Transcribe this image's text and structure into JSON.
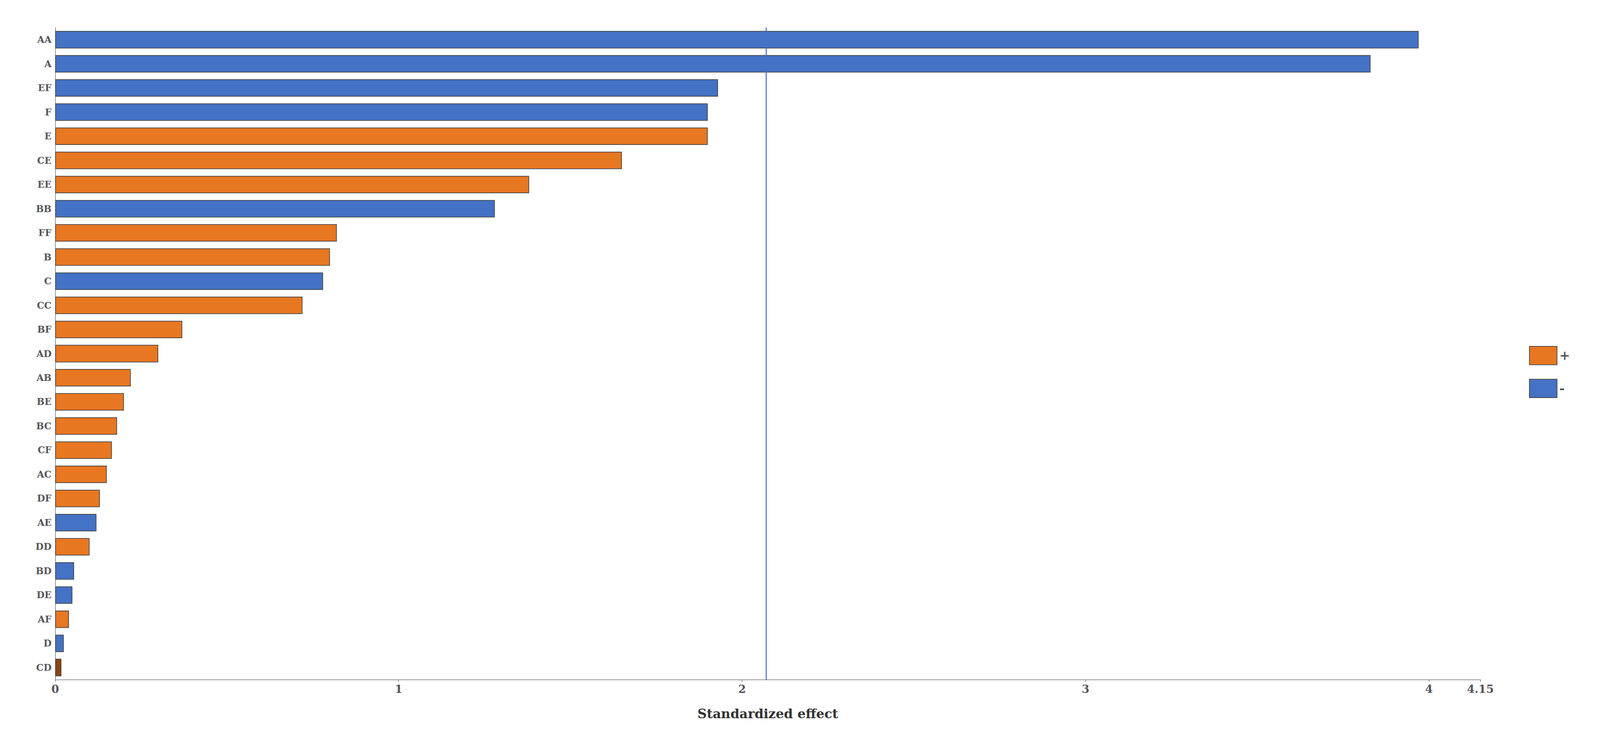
{
  "chart_data": {
    "type": "bar",
    "orientation": "horizontal",
    "xlabel": "Standardized effect",
    "categories": [
      "AA",
      "A",
      "EF",
      "F",
      "E",
      "CE",
      "EE",
      "BB",
      "FF",
      "B",
      "C",
      "CC",
      "BF",
      "AD",
      "AB",
      "BE",
      "BC",
      "CF",
      "AC",
      "DF",
      "AE",
      "DD",
      "BD",
      "DE",
      "AF",
      "D",
      "CD"
    ],
    "values": [
      3.97,
      3.83,
      1.93,
      1.9,
      1.9,
      1.65,
      1.38,
      1.28,
      0.82,
      0.8,
      0.78,
      0.72,
      0.37,
      0.3,
      0.22,
      0.2,
      0.18,
      0.165,
      0.15,
      0.13,
      0.12,
      0.1,
      0.055,
      0.05,
      0.04,
      0.025,
      0.018
    ],
    "colors": [
      "#4472C4",
      "#4472C4",
      "#4472C4",
      "#4472C4",
      "#E87722",
      "#E87722",
      "#E87722",
      "#4472C4",
      "#E87722",
      "#E87722",
      "#4472C4",
      "#E87722",
      "#E87722",
      "#E87722",
      "#E87722",
      "#E87722",
      "#E87722",
      "#E87722",
      "#E87722",
      "#E87722",
      "#4472C4",
      "#E87722",
      "#4472C4",
      "#4472C4",
      "#E87722",
      "#4472C4",
      "#8B4513"
    ],
    "reference_x": 2.069,
    "reference_color": "#4472C4",
    "xlim": [
      0,
      4.15
    ],
    "xticks": [
      0,
      1,
      2,
      3,
      4
    ],
    "grid": false,
    "legend": "right",
    "legend_entries": [
      {
        "name": "+",
        "color": "#E87722"
      },
      {
        "name": "-",
        "color": "#4472C4"
      }
    ]
  }
}
